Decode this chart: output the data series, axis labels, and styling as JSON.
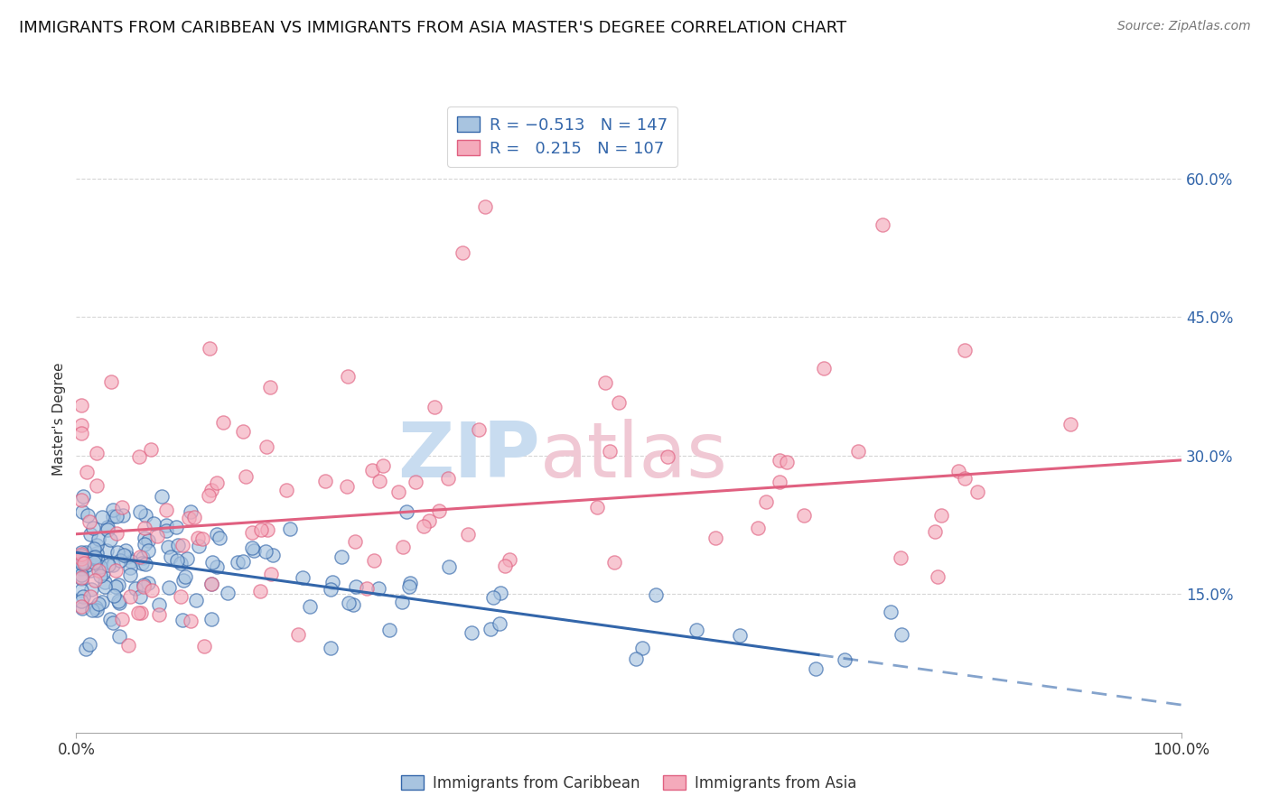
{
  "title": "IMMIGRANTS FROM CARIBBEAN VS IMMIGRANTS FROM ASIA MASTER'S DEGREE CORRELATION CHART",
  "source": "Source: ZipAtlas.com",
  "ylabel": "Master's Degree",
  "y_ticks": [
    0.0,
    0.15,
    0.3,
    0.45,
    0.6
  ],
  "y_tick_labels": [
    "",
    "15.0%",
    "30.0%",
    "45.0%",
    "60.0%"
  ],
  "x_range": [
    0.0,
    1.0
  ],
  "y_range": [
    0.0,
    0.68
  ],
  "caribbean_color": "#A8C4E0",
  "asia_color": "#F4AABB",
  "line_color_caribbean": "#3366AA",
  "line_color_asia": "#E06080",
  "background_color": "#FFFFFF",
  "grid_color": "#CCCCCC",
  "title_fontsize": 13,
  "source_fontsize": 10,
  "tick_fontsize": 12,
  "ylabel_fontsize": 11,
  "legend_fontsize": 13,
  "watermark_zip_color": "#DDEEFF",
  "watermark_atlas_color": "#EECCDD"
}
